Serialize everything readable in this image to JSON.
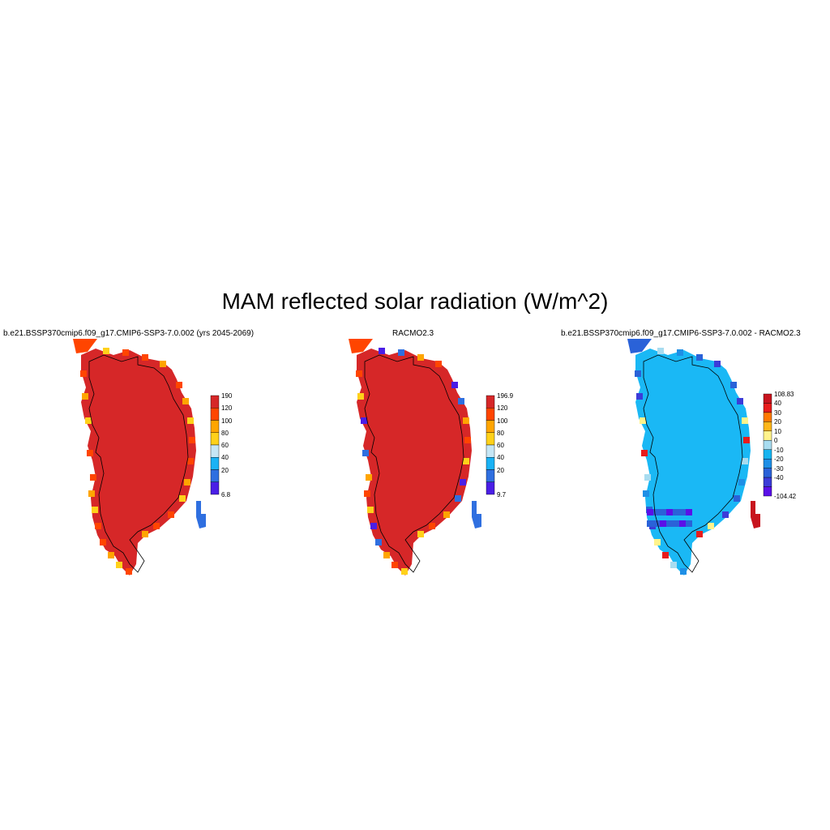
{
  "title": "MAM reflected solar radiation (W/m^2)",
  "panels": [
    {
      "title": "b.e21.BSSP370cmip6.f09_g17.CMIP6-SSP3-7.0.002 (yrs 2045-2069)",
      "colorbar": {
        "labels": [
          "190",
          "120",
          "100",
          "80",
          "60",
          "40",
          "20",
          "6.8"
        ],
        "colors": [
          "#d62728",
          "#ff4500",
          "#ffa500",
          "#ffd11a",
          "#c6e6f5",
          "#1ab2f5",
          "#2f6fe0",
          "#4a1ee6"
        ]
      },
      "fill": "#d62728"
    },
    {
      "title": "RACMO2.3",
      "colorbar": {
        "labels": [
          "196.9",
          "120",
          "100",
          "80",
          "60",
          "40",
          "20",
          "9.7"
        ],
        "colors": [
          "#d62728",
          "#ff4500",
          "#ffa500",
          "#ffd11a",
          "#c6e6f5",
          "#1ab2f5",
          "#2f6fe0",
          "#4a1ee6"
        ]
      },
      "fill": "#d62728"
    },
    {
      "title": "b.e21.BSSP370cmip6.f09_g17.CMIP6-SSP3-7.0.002 - RACMO2.3",
      "colorbar": {
        "labels": [
          "108.83",
          "40",
          "30",
          "20",
          "10",
          "0",
          "-10",
          "-20",
          "-30",
          "-40",
          "-104.42"
        ],
        "colors": [
          "#c8141e",
          "#e81c1c",
          "#ff7a00",
          "#ffb71a",
          "#fff38c",
          "#a8dcf0",
          "#16b4f0",
          "#1e8fe6",
          "#2a62d8",
          "#3c3cd8",
          "#5a10e8"
        ]
      },
      "fill": "#1ab8f5"
    }
  ]
}
